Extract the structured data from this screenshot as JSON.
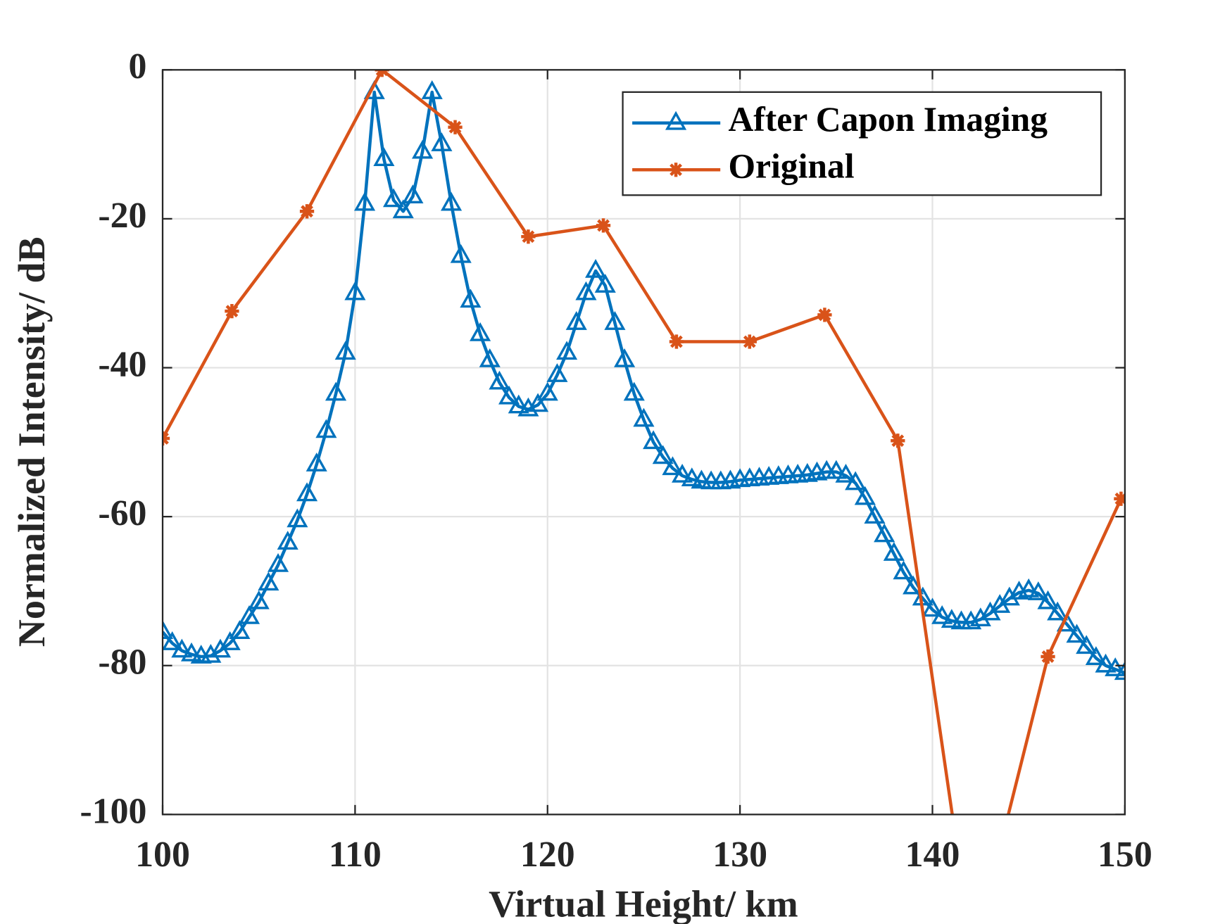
{
  "chart_data": {
    "type": "line",
    "x_label": "Virtual Height/ km",
    "y_label": "Normalized Intensity/ dB",
    "xlim": [
      100,
      150
    ],
    "xticks": [
      100,
      110,
      120,
      130,
      140,
      150
    ],
    "ylim": [
      -100,
      0
    ],
    "yticks": [
      -100,
      -80,
      -60,
      -40,
      -20,
      0
    ],
    "grid": true,
    "legend": "upper right",
    "series": [
      {
        "name": "After Capon Imaging",
        "color": "#0072BD",
        "marker": "triangle",
        "x": [
          100,
          100.5,
          101,
          101.5,
          102,
          102.5,
          103,
          103.5,
          104,
          104.5,
          105,
          105.5,
          106,
          106.5,
          107,
          107.5,
          108,
          108.5,
          109,
          109.5,
          110,
          110.5,
          111,
          111.5,
          112,
          112.5,
          113,
          113.5,
          114,
          114.5,
          115,
          115.5,
          116,
          116.5,
          117,
          117.5,
          118,
          118.5,
          119,
          119.5,
          120,
          120.5,
          121,
          121.5,
          122,
          122.5,
          123,
          123.5,
          124,
          124.5,
          125,
          125.5,
          126,
          126.5,
          127,
          127.5,
          128,
          128.5,
          129,
          129.5,
          130,
          130.5,
          131,
          131.5,
          132,
          132.5,
          133,
          133.5,
          134,
          134.5,
          135,
          135.5,
          136,
          136.5,
          137,
          137.5,
          138,
          138.5,
          139,
          139.5,
          140,
          140.5,
          141,
          141.5,
          142,
          142.5,
          143,
          143.5,
          144,
          144.5,
          145,
          145.5,
          146,
          146.5,
          147,
          147.5,
          148,
          148.5,
          149,
          149.5,
          150
        ],
        "values": [
          -75.5,
          -77,
          -78,
          -78.5,
          -78.8,
          -78.7,
          -78,
          -77,
          -75.5,
          -73.5,
          -71.5,
          -69,
          -66.5,
          -63.5,
          -60.5,
          -57,
          -53,
          -48.5,
          -43.5,
          -38,
          -30,
          -18,
          -3,
          -12,
          -17.5,
          -19,
          -17,
          -11,
          -3,
          -10,
          -18,
          -25,
          -31,
          -35.5,
          -39,
          -42,
          -44,
          -45.2,
          -45.6,
          -45,
          -43.5,
          -41,
          -38,
          -34,
          -30,
          -27,
          -29,
          -34,
          -39,
          -43.5,
          -47,
          -50,
          -52,
          -53.5,
          -54.5,
          -55,
          -55.3,
          -55.4,
          -55.4,
          -55.3,
          -55.1,
          -55,
          -54.9,
          -54.8,
          -54.7,
          -54.6,
          -54.5,
          -54.4,
          -54.2,
          -54,
          -54,
          -54.5,
          -55.5,
          -57.5,
          -60,
          -62.5,
          -65,
          -67.5,
          -69.5,
          -71,
          -72.5,
          -73.5,
          -74,
          -74.2,
          -74.2,
          -73.8,
          -73,
          -72,
          -71,
          -70.2,
          -69.9,
          -70.3,
          -71.5,
          -73,
          -74.5,
          -76,
          -77.5,
          -79,
          -80,
          -80.5,
          -81
        ]
      },
      {
        "name": "Original",
        "color": "#D95319",
        "marker": "asterisk",
        "x": [
          100,
          103.6,
          107.5,
          111.4,
          115.2,
          119,
          122.9,
          126.7,
          130.5,
          134.4,
          138.2,
          142.1,
          146,
          149.8
        ],
        "values": [
          -49.5,
          -32.4,
          -19,
          0,
          -7.7,
          -22.4,
          -20.9,
          -36.5,
          -36.5,
          -32.9,
          -49.8,
          -119,
          -78.8,
          -57.6
        ]
      }
    ]
  }
}
